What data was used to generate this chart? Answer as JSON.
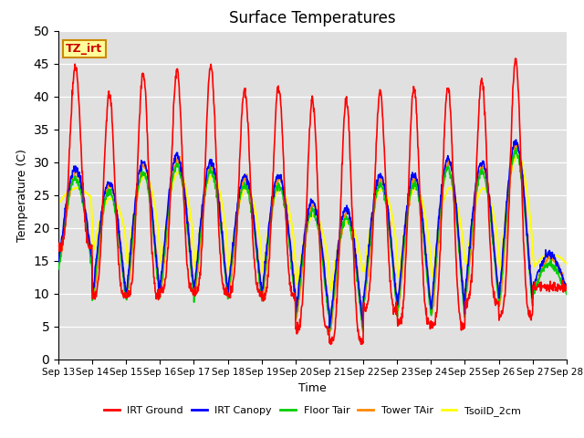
{
  "title": "Surface Temperatures",
  "xlabel": "Time",
  "ylabel": "Temperature (C)",
  "ylim": [
    0,
    50
  ],
  "yticks": [
    0,
    5,
    10,
    15,
    20,
    25,
    30,
    35,
    40,
    45,
    50
  ],
  "x_labels": [
    "Sep 13",
    "Sep 14",
    "Sep 15",
    "Sep 16",
    "Sep 17",
    "Sep 18",
    "Sep 19",
    "Sep 20",
    "Sep 21",
    "Sep 22",
    "Sep 23",
    "Sep 24",
    "Sep 25",
    "Sep 26",
    "Sep 27",
    "Sep 28"
  ],
  "series": {
    "IRT Ground": {
      "color": "#ff0000",
      "lw": 1.2
    },
    "IRT Canopy": {
      "color": "#0000ff",
      "lw": 1.2
    },
    "Floor Tair": {
      "color": "#00cc00",
      "lw": 1.2
    },
    "Tower TAir": {
      "color": "#ff8800",
      "lw": 1.2
    },
    "TsoilD_2cm": {
      "color": "#ffff00",
      "lw": 1.5
    }
  },
  "bg_color": "#e0e0e0",
  "grid_color": "#ffffff",
  "annotation_text": "TZ_irt",
  "annotation_bbox_fc": "#ffff99",
  "annotation_bbox_ec": "#cc8800",
  "n_days": 15,
  "pts_per_day": 96,
  "irt_ground_peaks": [
    44.5,
    40.5,
    43.5,
    44.0,
    44.5,
    41.0,
    41.5,
    39.5,
    39.5,
    40.5,
    41.5,
    41.5,
    42.5,
    45.5,
    11.0
  ],
  "irt_ground_troughs": [
    17.0,
    9.5,
    9.5,
    10.5,
    10.0,
    10.0,
    9.5,
    4.5,
    2.5,
    7.5,
    5.5,
    5.0,
    8.5,
    6.5,
    11.0
  ],
  "other_peaks": [
    29.0,
    27.0,
    30.0,
    31.0,
    30.0,
    28.0,
    28.0,
    24.0,
    23.0,
    28.0,
    28.0,
    30.5,
    30.0,
    33.0,
    16.0
  ],
  "other_troughs": [
    15.0,
    10.0,
    10.0,
    11.0,
    10.5,
    10.5,
    10.0,
    7.0,
    5.0,
    9.0,
    8.0,
    7.5,
    10.0,
    9.0,
    11.0
  ],
  "soil_peaks": [
    26.0,
    24.5,
    28.0,
    28.5,
    28.0,
    26.0,
    26.0,
    22.0,
    21.0,
    26.0,
    26.0,
    26.0,
    26.0,
    31.0,
    16.0
  ],
  "soil_troughs": [
    24.0,
    16.5,
    14.0,
    14.0,
    13.5,
    13.0,
    13.0,
    11.0,
    10.0,
    13.5,
    12.0,
    12.0,
    14.0,
    13.0,
    14.0
  ]
}
